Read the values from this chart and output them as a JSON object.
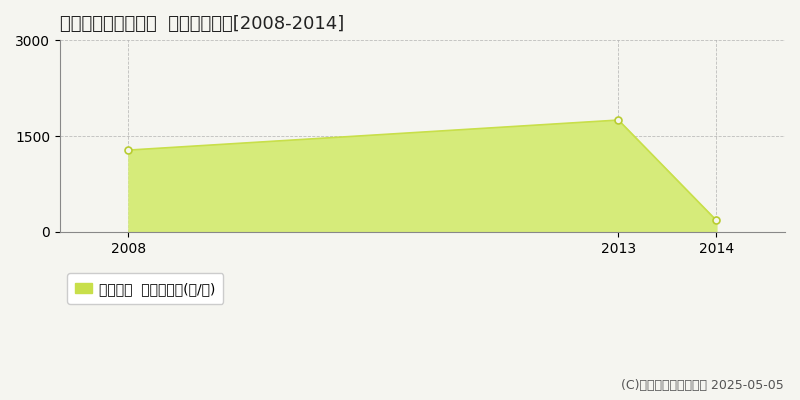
{
  "title": "新冠郡新冠町大狩部  林地価格推移[2008-2014]",
  "years": [
    2008,
    2013,
    2014
  ],
  "values": [
    1280,
    1750,
    180
  ],
  "ylim": [
    0,
    3000
  ],
  "yticks": [
    0,
    1500,
    3000
  ],
  "xticks": [
    2008,
    2013,
    2014
  ],
  "xlim": [
    2007.3,
    2014.7
  ],
  "line_color": "#c8df4a",
  "fill_color": "#d6eb7a",
  "marker_color": "#b8cc30",
  "bg_color": "#f5f5f0",
  "grid_color": "#999999",
  "legend_label": "林地価格  平均坪単価(円/坪)",
  "copyright_text": "(C)土地価格ドットコム 2025-05-05",
  "title_fontsize": 13,
  "tick_fontsize": 10,
  "legend_fontsize": 10,
  "copyright_fontsize": 9
}
